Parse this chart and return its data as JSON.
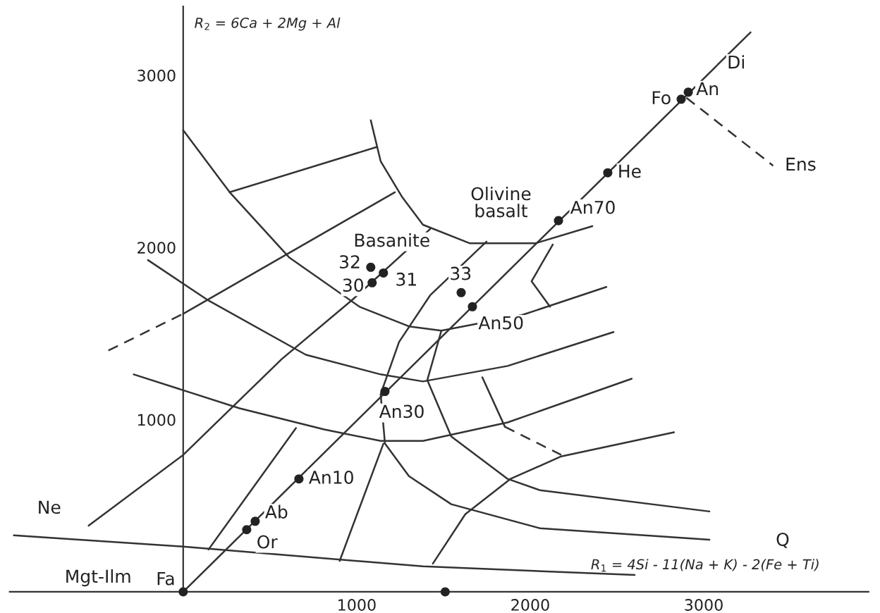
{
  "chart_data": {
    "type": "line",
    "xlabel": "R$_{1}$ = 4Si - 11(Na + K) - 2(Fe + Ti)",
    "ylabel": "R$_{2}$ = 6Ca + 2Mg + Al",
    "xlim": [
      -1000,
      3950
    ],
    "ylim": [
      0,
      3400
    ],
    "xticks": [
      1000,
      2000,
      3000
    ],
    "yticks": [
      1000,
      2000,
      3000
    ],
    "grid": false,
    "legend": false,
    "series": [
      {
        "color": "#333333",
        "line_style": "solid",
        "x": [
          0,
          3270
        ],
        "values": [
          0,
          3250
        ]
      },
      {
        "color": "#333333",
        "line_style": "dashed",
        "x": [
          2900,
          3400
        ],
        "values": [
          2870,
          2475
        ]
      },
      {
        "color": "#333333",
        "line_style": "solid",
        "x": [
          0,
          268,
          610,
          1016,
          1301,
          1488,
          1951,
          2439
        ],
        "values": [
          2681,
          2321,
          1943,
          1656,
          1542,
          1517,
          1607,
          1771
        ]
      },
      {
        "color": "#333333",
        "line_style": "solid",
        "x": [
          1081,
          1138,
          1260,
          1382,
          1650,
          2033,
          2358
        ],
        "values": [
          2739,
          2501,
          2296,
          2132,
          2025,
          2025,
          2124
        ]
      },
      {
        "type": "line",
        "color": "#333333",
        "line_style": "solid",
        "x": [
          268,
          1114
        ],
        "values": [
          2321,
          2583
        ]
      },
      {
        "type": "line",
        "color": "#333333",
        "line_style": "dashed",
        "x": [
          -431,
          0
        ],
        "values": [
          1402,
          1615
        ]
      },
      {
        "type": "line",
        "color": "#333333",
        "line_style": "solid",
        "x": [
          0,
          1220
        ],
        "values": [
          1615,
          2321
        ]
      },
      {
        "type": "line",
        "color": "#333333",
        "line_style": "solid",
        "x": [
          -545,
          0,
          569,
          976,
          1423
        ],
        "values": [
          385,
          795,
          1353,
          1697,
          2107
        ]
      },
      {
        "type": "line",
        "color": "#333333",
        "line_style": "solid",
        "x": [
          -203,
          138,
          707,
          1138,
          1382,
          1870,
          2480
        ],
        "values": [
          1927,
          1697,
          1377,
          1263,
          1222,
          1312,
          1509
        ]
      },
      {
        "type": "line",
        "color": "#333333",
        "line_style": "solid",
        "x": [
          -285,
          325,
          813,
          1138,
          1382,
          1870,
          2585
        ],
        "values": [
          1263,
          1066,
          943,
          877,
          877,
          984,
          1238
        ]
      },
      {
        "type": "line",
        "color": "#333333",
        "line_style": "solid",
        "x": [
          1748,
          1423,
          1244,
          1138,
          1163,
          1301,
          1545,
          2057,
          3033
        ],
        "values": [
          2034,
          1722,
          1451,
          1148,
          861,
          672,
          509,
          369,
          303
        ]
      },
      {
        "type": "line",
        "color": "#333333",
        "line_style": "solid",
        "x": [
          1488,
          1407,
          1545,
          1870,
          2057,
          3033
        ],
        "values": [
          1517,
          1230,
          902,
          656,
          590,
          467
        ]
      },
      {
        "type": "line",
        "color": "#333333",
        "line_style": "solid",
        "x": [
          2130,
          2008,
          2114
        ],
        "values": [
          2017,
          1804,
          1656
        ]
      },
      {
        "type": "line",
        "color": "#333333",
        "line_style": "solid",
        "x": [
          -976,
          0,
          1382,
          2602
        ],
        "values": [
          328,
          263,
          148,
          98
        ]
      },
      {
        "type": "line",
        "color": "#333333",
        "line_style": "solid",
        "x": [
          146,
          650
        ],
        "values": [
          246,
          951
        ]
      },
      {
        "type": "line",
        "color": "#333333",
        "line_style": "solid",
        "x": [
          902,
          1154
        ],
        "values": [
          180,
          861
        ]
      },
      {
        "type": "line",
        "color": "#333333",
        "line_style": "solid",
        "x": [
          1439,
          1626,
          1886,
          2179,
          2829
        ],
        "values": [
          164,
          451,
          656,
          787,
          927
        ]
      },
      {
        "type": "line",
        "color": "#333333",
        "line_style": "solid",
        "x": [
          1724,
          1854
        ],
        "values": [
          1246,
          959
        ]
      },
      {
        "type": "line",
        "color": "#333333",
        "line_style": "dashed",
        "x": [
          1854,
          2179
        ],
        "values": [
          959,
          795
        ]
      },
      {
        "type": "scatter",
        "color": "#222222",
        "marker": "circle",
        "x": [
          0,
          1510,
          366,
          415,
          667,
          1163,
          1667,
          1602,
          2163,
          2447,
          2870,
          2911,
          1081,
          1154,
          1089
        ],
        "values": [
          0,
          0,
          361,
          410,
          656,
          1164,
          1656,
          1738,
          2156,
          2434,
          2861,
          2902,
          1885,
          1852,
          1795
        ]
      }
    ],
    "annotations": [
      {
        "text": "Fa",
        "x": 0,
        "y": 0
      },
      {
        "text": "Or",
        "x": 366,
        "y": 361
      },
      {
        "text": "Ab",
        "x": 415,
        "y": 410
      },
      {
        "text": "An10",
        "x": 667,
        "y": 656
      },
      {
        "text": "An30",
        "x": 1163,
        "y": 1164
      },
      {
        "text": "An50",
        "x": 1667,
        "y": 1656
      },
      {
        "text": "33",
        "x": 1602,
        "y": 1738
      },
      {
        "text": "An70",
        "x": 2163,
        "y": 2156
      },
      {
        "text": "He",
        "x": 2447,
        "y": 2434
      },
      {
        "text": "Fo",
        "x": 2870,
        "y": 2861
      },
      {
        "text": "An",
        "x": 2911,
        "y": 2902
      },
      {
        "text": "Di",
        "x": 3270,
        "y": 3250
      },
      {
        "text": "Ens",
        "x": 3400,
        "y": 2475
      },
      {
        "text": "32",
        "x": 1081,
        "y": 1885
      },
      {
        "text": "30",
        "x": 1089,
        "y": 1795
      },
      {
        "text": "31",
        "x": 1154,
        "y": 1852
      },
      "Basanite",
      "Olivine\nbasalt",
      "Ne",
      "Q",
      "Mgt-Ilm"
    ]
  }
}
